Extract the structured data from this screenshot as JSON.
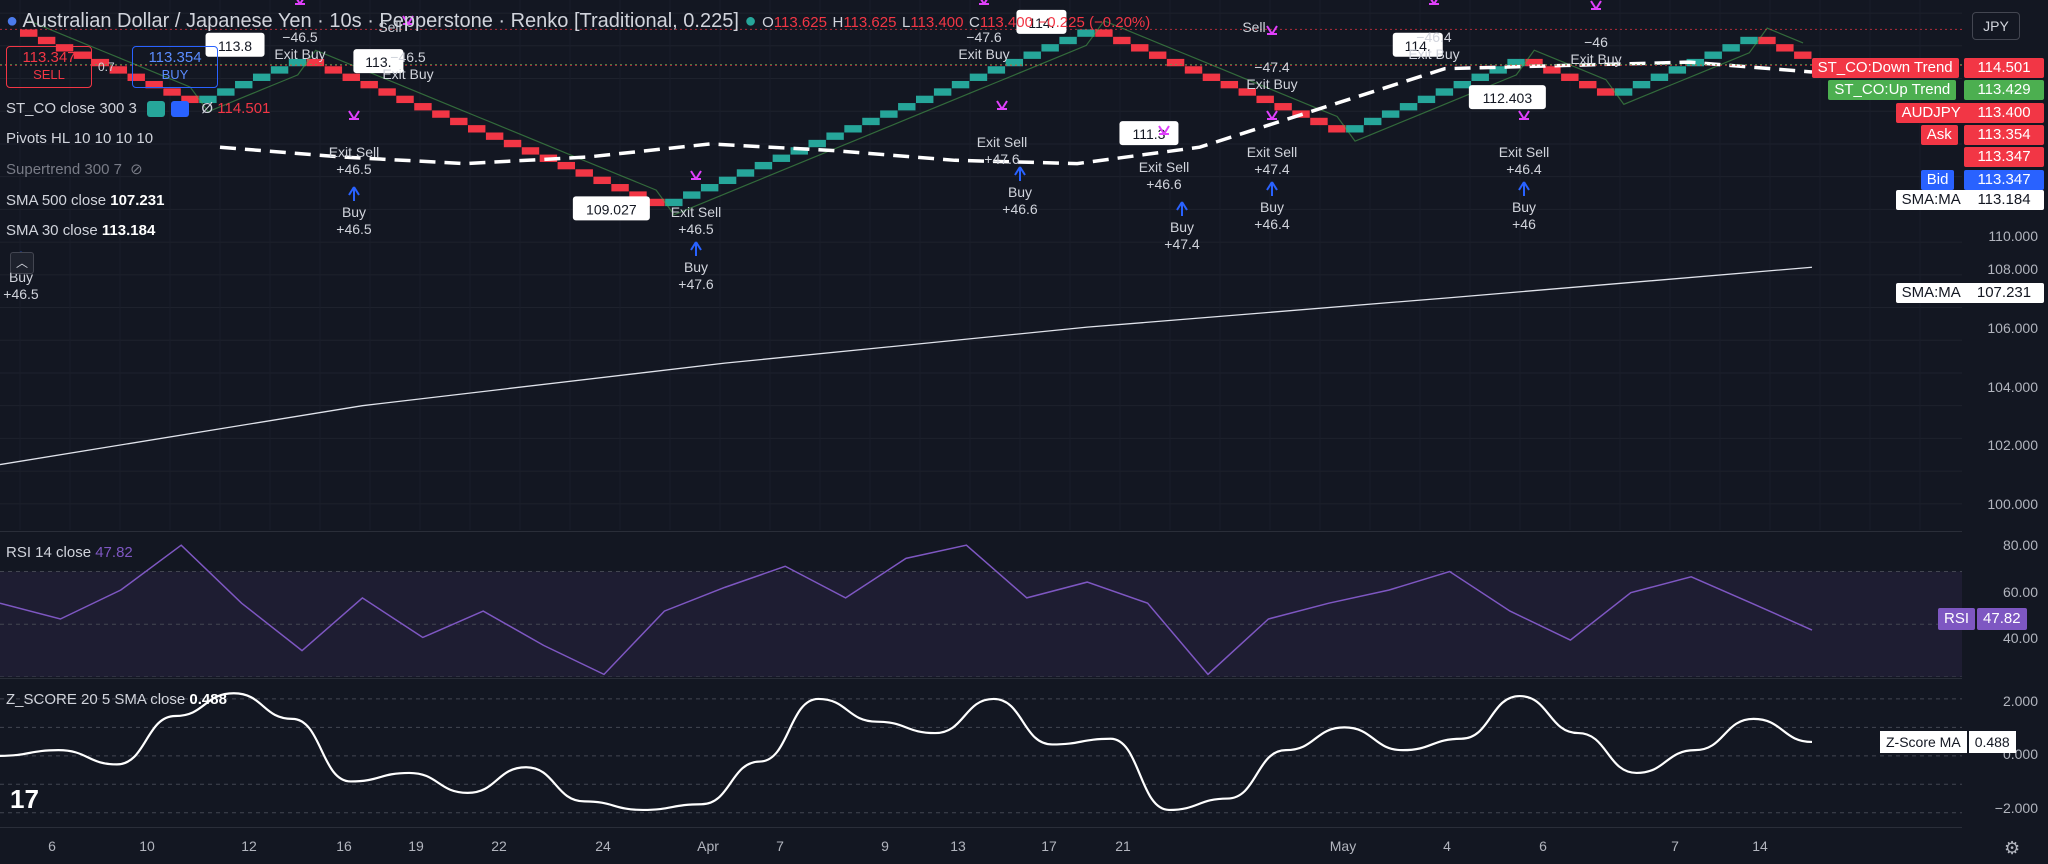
{
  "header": {
    "title": "Australian Dollar / Japanese Yen · 10s · Pepperstone · Renko [Traditional, 0.225]",
    "o_label": "O",
    "o": "113.625",
    "h_label": "H",
    "h": "113.625",
    "l_label": "L",
    "l": "113.400",
    "c_label": "C",
    "c": "113.400",
    "change": "−0.225 (−0.20%)"
  },
  "trade": {
    "sell_price": "113.347",
    "sell_label": "SELL",
    "buy_price": "113.354",
    "buy_label": "BUY",
    "spread": "0.7"
  },
  "legends": {
    "st_co": "ST_CO close 300 3",
    "st_co_value": "114.501",
    "st_co_zero": "Ø",
    "pivots": "Pivots HL 10 10 10 10",
    "supertrend": "Supertrend 300 7",
    "sma500": "SMA 500 close",
    "sma500_value": "107.231",
    "sma": "SMA 30 close",
    "sma_value": "113.184",
    "rsi": "RSI 14 close",
    "rsi_value": "47.82",
    "z": "Z_SCORE 20 5 SMA close",
    "z_value": "0.488"
  },
  "currency": "JPY",
  "price_tags": [
    {
      "name": "ST_CO:Down Trend",
      "value": "114.501",
      "color": "#f23645"
    },
    {
      "name": "ST_CO:Up Trend",
      "value": "113.429",
      "color": "#4caf50"
    },
    {
      "name": "AUDJPY",
      "value": "113.400",
      "color": "#f23645"
    },
    {
      "name": "Ask",
      "value": "113.354",
      "color": "#f23645"
    },
    {
      "name": "",
      "value": "113.347",
      "color": "#f23645"
    },
    {
      "name": "Bid",
      "value": "113.347",
      "color": "#2962ff"
    },
    {
      "name": "SMA:MA",
      "value": "113.184",
      "color": "#ffffff"
    },
    {
      "name": "SMA:MA",
      "value": "107.231",
      "color": "#ffffff"
    }
  ],
  "rsi_tag": {
    "name": "RSI",
    "value": "47.82"
  },
  "z_tag": {
    "name": "Z-Score MA",
    "value": "0.488"
  },
  "yaxis_main": [
    "110.000",
    "108.000",
    "106.000",
    "104.000",
    "102.000",
    "100.000"
  ],
  "yaxis_rsi": [
    "80.00",
    "60.00",
    "40.00"
  ],
  "yaxis_z": [
    "2.000",
    "0.000",
    "−2.000"
  ],
  "xaxis": [
    "6",
    "10",
    "12",
    "16",
    "19",
    "22",
    "24",
    "Apr",
    "7",
    "9",
    "13",
    "17",
    "21",
    "May",
    "4",
    "6",
    "7",
    "14"
  ],
  "signals": [
    {
      "kind": "buy",
      "text": [
        "Buy",
        "+46.5"
      ]
    },
    {
      "kind": "exit_buy",
      "text": [
        "−46.5",
        "Exit Buy"
      ]
    },
    {
      "kind": "exit_sell",
      "text": [
        "Exit Sell",
        "+46.5"
      ]
    },
    {
      "kind": "buy",
      "text": [
        "Buy",
        "+46.5"
      ]
    },
    {
      "kind": "sell",
      "text": [
        "Sell"
      ]
    },
    {
      "kind": "exit_buy",
      "text": [
        "−46.5",
        "Exit Buy"
      ]
    },
    {
      "kind": "exit_sell",
      "text": [
        "Exit Sell",
        "+46.5"
      ]
    },
    {
      "kind": "buy",
      "text": [
        "Buy",
        "+47.6"
      ]
    },
    {
      "kind": "exit_buy",
      "text": [
        "−47.6",
        "Exit Buy"
      ]
    },
    {
      "kind": "exit_sell",
      "text": [
        "Exit Sell",
        "+47.6"
      ]
    },
    {
      "kind": "buy",
      "text": [
        "Buy",
        "+46.6"
      ]
    },
    {
      "kind": "sell",
      "text": [
        "Sell"
      ]
    },
    {
      "kind": "exit_buy",
      "text": [
        "−47.4",
        "Exit Buy"
      ]
    },
    {
      "kind": "exit_sell",
      "text": [
        "Exit Sell",
        "+46.6"
      ]
    },
    {
      "kind": "buy",
      "text": [
        "Buy",
        "+47.4"
      ]
    },
    {
      "kind": "exit_sell",
      "text": [
        "Exit Sell",
        "+47.4"
      ]
    },
    {
      "kind": "buy",
      "text": [
        "Buy",
        "+46.4"
      ]
    },
    {
      "kind": "exit_buy",
      "text": [
        "−46.4",
        "Exit Buy"
      ]
    },
    {
      "kind": "exit_sell",
      "text": [
        "Exit Sell",
        "+46.4"
      ]
    },
    {
      "kind": "buy",
      "text": [
        "Buy",
        "+46"
      ]
    },
    {
      "kind": "exit_buy",
      "text": [
        "−46",
        "Exit Buy"
      ]
    }
  ],
  "pivot_labels": [
    "113.8",
    "113.",
    "109.027",
    "114.",
    "111.3",
    "114.",
    "112.403"
  ],
  "chart_data": [
    {
      "type": "renko",
      "brick_size": 0.225,
      "ylim": [
        99.2,
        115.4
      ],
      "pivots": [
        {
          "price": 114.5
        },
        {
          "price": 112.2
        },
        {
          "price": 113.6
        },
        {
          "price": 109.0
        },
        {
          "price": 114.7
        },
        {
          "price": 111.3
        },
        {
          "price": 113.6
        },
        {
          "price": 112.4
        },
        {
          "price": 114.3
        },
        {
          "price": 113.4
        }
      ],
      "st_down": [
        114.501
      ],
      "st_up": [
        113.429
      ],
      "sma_fast": [
        110.9,
        110.6,
        110.4,
        110.6,
        111.0,
        110.8,
        110.5,
        110.4,
        110.9,
        112.1,
        113.3,
        113.4,
        113.5,
        113.2
      ],
      "sma_slow": [
        101.2,
        103.0,
        104.3,
        105.4,
        106.3,
        107.231
      ]
    },
    {
      "type": "line",
      "name": "RSI",
      "ylim": [
        30,
        85
      ],
      "values": [
        58,
        52,
        63,
        80,
        58,
        40,
        60,
        45,
        55,
        42,
        31,
        55,
        64,
        72,
        60,
        75,
        80,
        60,
        66,
        58,
        31,
        52,
        58,
        63,
        70,
        55,
        44,
        62,
        68,
        58,
        47.82
      ]
    },
    {
      "type": "line",
      "name": "Z-Score MA",
      "ylim": [
        -2.5,
        2.7
      ],
      "values": [
        0.0,
        0.2,
        -0.3,
        1.4,
        2.2,
        1.3,
        -0.9,
        -0.6,
        -1.3,
        -0.4,
        -1.6,
        -1.9,
        -1.7,
        -0.2,
        2.0,
        1.2,
        0.8,
        2.0,
        0.4,
        0.6,
        -1.9,
        -1.5,
        0.2,
        1.0,
        0.2,
        0.6,
        2.1,
        0.8,
        -0.6,
        0.2,
        1.3,
        0.488
      ]
    }
  ]
}
